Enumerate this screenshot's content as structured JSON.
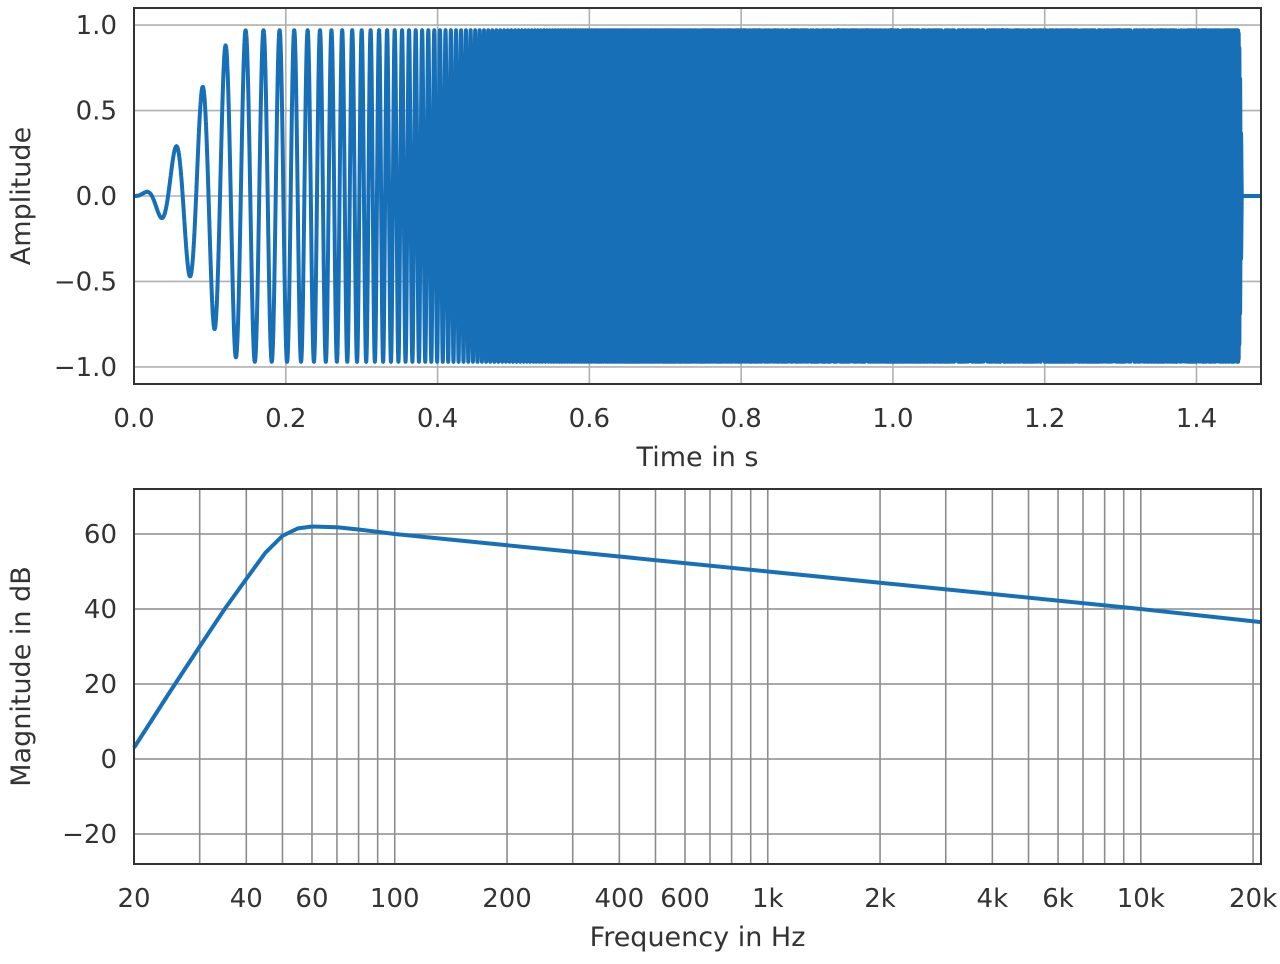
{
  "colors": {
    "series": "#1770b7",
    "axes_frame": "#333333",
    "top_grid": "#b0b0b0",
    "bottom_grid": "#8c8c8c",
    "text": "#333333"
  },
  "chart_data": [
    {
      "type": "line",
      "description_of_signal": "exponential sine sweep with fade-in and fade-out",
      "xlabel": "Time in s",
      "ylabel": "Amplitude",
      "xlim": [
        0.0,
        1.485
      ],
      "ylim": [
        -1.1,
        1.1
      ],
      "grid": true,
      "x_ticks": [
        0.0,
        0.2,
        0.4,
        0.6,
        0.8,
        1.0,
        1.2,
        1.4
      ],
      "x_tick_labels": [
        "0.0",
        "0.2",
        "0.4",
        "0.6",
        "0.8",
        "1.0",
        "1.2",
        "1.4"
      ],
      "y_ticks": [
        1.0,
        0.5,
        0.0,
        -0.5,
        -1.0
      ],
      "y_tick_labels": [
        "1.0",
        "0.5",
        "0.0",
        "−0.5",
        "−1.0"
      ],
      "series": [
        {
          "sweep": {
            "f_start_hz": 20,
            "f_end_hz": 20000,
            "duration_s": 1.46,
            "fade_in_end_s": 0.15,
            "fade_out_start_s": 1.455,
            "peak_amplitude": 0.97
          }
        }
      ]
    },
    {
      "type": "line",
      "xlabel": "Frequency in Hz",
      "ylabel": "Magnitude in dB",
      "xscale": "log",
      "xlim": [
        20,
        21000
      ],
      "ylim": [
        -28,
        72
      ],
      "grid": true,
      "x_ticks": [
        20,
        40,
        60,
        100,
        200,
        400,
        600,
        1000,
        2000,
        4000,
        6000,
        10000,
        20000
      ],
      "x_tick_labels": [
        "20",
        "40",
        "60",
        "100",
        "200",
        "400",
        "600",
        "1k",
        "2k",
        "4k",
        "6k",
        "10k",
        "20k"
      ],
      "y_ticks": [
        60,
        40,
        20,
        0,
        -20
      ],
      "y_tick_labels": [
        "60",
        "40",
        "20",
        "0",
        "−20"
      ],
      "grid_x": [
        30,
        40,
        50,
        60,
        70,
        80,
        90,
        100,
        200,
        300,
        400,
        500,
        600,
        700,
        800,
        900,
        1000,
        2000,
        3000,
        4000,
        5000,
        6000,
        7000,
        8000,
        9000,
        10000,
        20000
      ],
      "series": [
        {
          "x": [
            20,
            25,
            30,
            35,
            40,
            45,
            50,
            55,
            60,
            70,
            80,
            100,
            200,
            400,
            1000,
            2000,
            4000,
            10000,
            21000
          ],
          "y": [
            3,
            18,
            30,
            40,
            48,
            55,
            59.5,
            61.5,
            62,
            61.8,
            61.2,
            60,
            57,
            54,
            50,
            47,
            44,
            40,
            36.5
          ]
        }
      ]
    }
  ]
}
